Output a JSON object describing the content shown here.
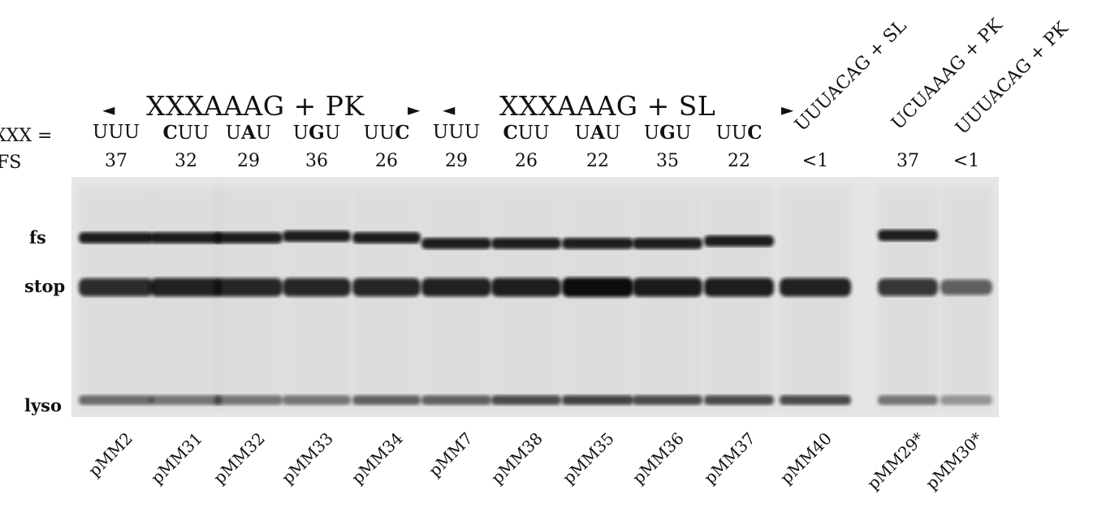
{
  "header": {
    "group1_title": "XXXAAAG + PK",
    "group2_title": "XXXAAAG + SL",
    "arrow_left": "◄",
    "arrow_right": "►"
  },
  "row_labels": {
    "xxx": "XXX =",
    "fs": "FS"
  },
  "rotated_headers": [
    "UUUACAG + SL",
    "UCUAAAG + PK",
    "UUUACAG + PK"
  ],
  "lanes": [
    {
      "codon": [
        "U",
        "U",
        "U"
      ],
      "bold": [
        false,
        false,
        false
      ],
      "fs": "37",
      "plasmid": "pMM2"
    },
    {
      "codon": [
        "C",
        "U",
        "U"
      ],
      "bold": [
        true,
        false,
        false
      ],
      "fs": "32",
      "plasmid": "pMM31"
    },
    {
      "codon": [
        "U",
        "A",
        "U"
      ],
      "bold": [
        false,
        true,
        false
      ],
      "fs": "29",
      "plasmid": "pMM32"
    },
    {
      "codon": [
        "U",
        "G",
        "U"
      ],
      "bold": [
        false,
        true,
        false
      ],
      "fs": "36",
      "plasmid": "pMM33"
    },
    {
      "codon": [
        "U",
        "U",
        "C"
      ],
      "bold": [
        false,
        false,
        true
      ],
      "fs": "26",
      "plasmid": "pMM34"
    },
    {
      "codon": [
        "U",
        "U",
        "U"
      ],
      "bold": [
        false,
        false,
        false
      ],
      "fs": "29",
      "plasmid": "pMM7"
    },
    {
      "codon": [
        "C",
        "U",
        "U"
      ],
      "bold": [
        true,
        false,
        false
      ],
      "fs": "26",
      "plasmid": "pMM38"
    },
    {
      "codon": [
        "U",
        "A",
        "U"
      ],
      "bold": [
        false,
        true,
        false
      ],
      "fs": "22",
      "plasmid": "pMM35"
    },
    {
      "codon": [
        "U",
        "G",
        "U"
      ],
      "bold": [
        false,
        true,
        false
      ],
      "fs": "35",
      "plasmid": "pMM36"
    },
    {
      "codon": [
        "U",
        "U",
        "C"
      ],
      "bold": [
        false,
        false,
        true
      ],
      "fs": "22",
      "plasmid": "pMM37"
    },
    {
      "codon": [],
      "bold": [],
      "fs": "<1",
      "plasmid": "pMM40"
    },
    {
      "codon": [],
      "bold": [],
      "fs": "37",
      "plasmid": "pMM29*"
    },
    {
      "codon": [],
      "bold": [],
      "fs": "<1",
      "plasmid": "pMM30*"
    }
  ],
  "band_labels": {
    "fs": "fs",
    "stop": "stop",
    "lyso": "lyso"
  },
  "gel": {
    "fs_present": [
      true,
      true,
      true,
      true,
      true,
      true,
      true,
      true,
      true,
      true,
      false,
      true,
      false
    ],
    "stop_strength": [
      0.85,
      0.9,
      0.88,
      0.88,
      0.88,
      0.9,
      0.92,
      1.0,
      0.93,
      0.92,
      0.9,
      0.8,
      0.6
    ],
    "lyso_strength": [
      0.55,
      0.5,
      0.5,
      0.5,
      0.6,
      0.6,
      0.7,
      0.75,
      0.7,
      0.7,
      0.7,
      0.5,
      0.35
    ]
  },
  "colors": {
    "band": "#0d0d0d",
    "gel_bg": "#e8e8e8"
  }
}
